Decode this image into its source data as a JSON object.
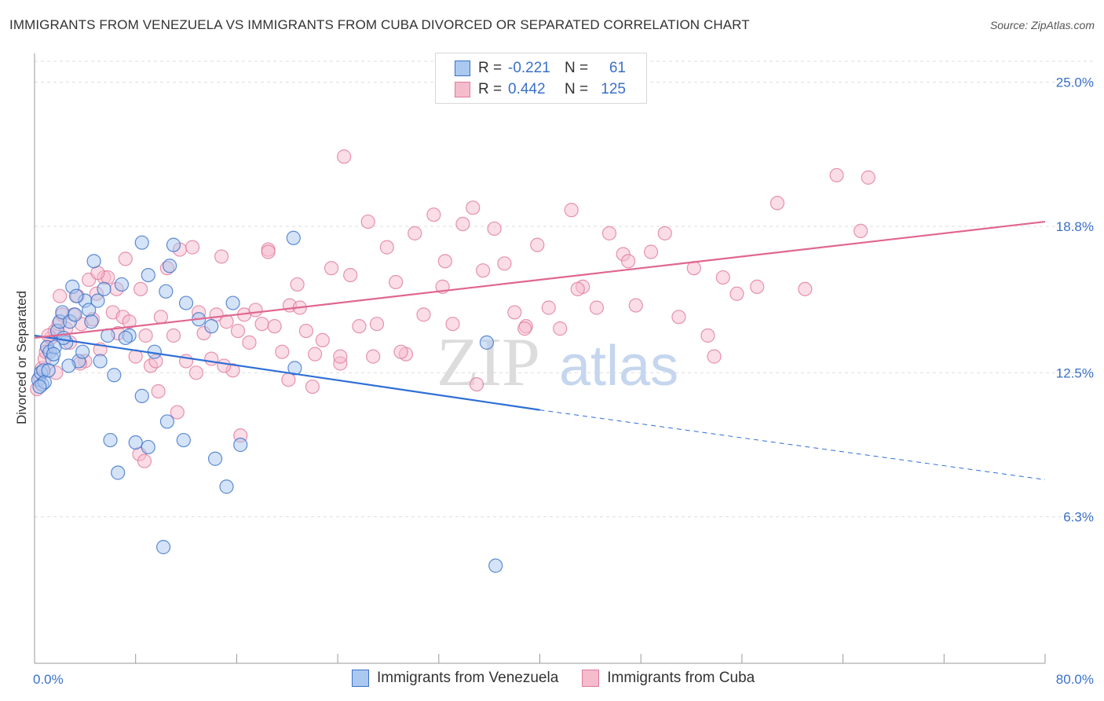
{
  "title": "IMMIGRANTS FROM VENEZUELA VS IMMIGRANTS FROM CUBA DIVORCED OR SEPARATED CORRELATION CHART",
  "source": "Source: ZipAtlas.com",
  "watermark": {
    "part1": "ZIP",
    "part2": "atlas"
  },
  "legend": {
    "rows": [
      {
        "r_label": "R =",
        "r_value": "-0.221",
        "n_label": "N =",
        "n_value": "61"
      },
      {
        "r_label": "R =",
        "r_value": "0.442",
        "n_label": "N =",
        "n_value": "125"
      }
    ]
  },
  "colors": {
    "venezuela_fill": "#aac8f0",
    "venezuela_stroke": "#3a70c8",
    "venezuela_line": "#2e6fd6",
    "cuba_fill": "#f5bccd",
    "cuba_stroke": "#e07a9c",
    "cuba_line": "#e06690",
    "tick_label": "#3a70c8",
    "grid": "#dddddd"
  },
  "chart_data": {
    "type": "scatter",
    "title": "IMMIGRANTS FROM VENEZUELA VS IMMIGRANTS FROM CUBA DIVORCED OR SEPARATED CORRELATION CHART",
    "xlabel": "",
    "ylabel": "Divorced or Separated",
    "xlim": [
      0,
      80
    ],
    "ylim": [
      0,
      25.9
    ],
    "x_tick_labels": [
      "0.0%",
      "80.0%"
    ],
    "y_ticks": [
      6.3,
      12.5,
      18.8,
      25.0
    ],
    "y_tick_labels": [
      "6.3%",
      "12.5%",
      "18.8%",
      "25.0%"
    ],
    "grid": true,
    "legend_position": "top-center",
    "series": [
      {
        "name": "Immigrants from Venezuela",
        "R": -0.221,
        "N": 61,
        "trend": {
          "x0": 0,
          "y0": 14.1,
          "x1": 40,
          "y1": 10.9,
          "dash_to_x": 80,
          "dash_to_y": 7.9
        },
        "points": [
          [
            0.3,
            12.2
          ],
          [
            0.5,
            12.5
          ],
          [
            0.6,
            12.0
          ],
          [
            0.7,
            12.6
          ],
          [
            0.8,
            12.1
          ],
          [
            1.0,
            13.6
          ],
          [
            1.2,
            13.4
          ],
          [
            1.4,
            13.1
          ],
          [
            1.6,
            13.6
          ],
          [
            1.8,
            14.3
          ],
          [
            2.0,
            14.7
          ],
          [
            2.2,
            15.1
          ],
          [
            2.5,
            13.8
          ],
          [
            2.8,
            14.7
          ],
          [
            3.0,
            16.2
          ],
          [
            3.2,
            15.0
          ],
          [
            3.5,
            13.0
          ],
          [
            3.8,
            13.4
          ],
          [
            4.0,
            15.6
          ],
          [
            4.3,
            15.2
          ],
          [
            4.7,
            17.3
          ],
          [
            5.0,
            15.6
          ],
          [
            5.5,
            16.1
          ],
          [
            5.8,
            14.1
          ],
          [
            6.3,
            12.4
          ],
          [
            6.9,
            16.3
          ],
          [
            7.5,
            14.1
          ],
          [
            8.5,
            18.1
          ],
          [
            9.0,
            16.7
          ],
          [
            9.5,
            13.4
          ],
          [
            10.4,
            16.0
          ],
          [
            10.7,
            17.1
          ],
          [
            13.0,
            14.8
          ],
          [
            15.7,
            15.5
          ],
          [
            20.6,
            12.7
          ],
          [
            35.8,
            13.8
          ],
          [
            1.5,
            13.3
          ],
          [
            2.7,
            12.8
          ],
          [
            6.0,
            9.6
          ],
          [
            6.6,
            8.2
          ],
          [
            8.0,
            9.5
          ],
          [
            8.5,
            11.5
          ],
          [
            9.0,
            9.3
          ],
          [
            10.5,
            10.4
          ],
          [
            11.0,
            18.0
          ],
          [
            11.8,
            9.6
          ],
          [
            14.3,
            8.8
          ],
          [
            15.2,
            7.6
          ],
          [
            16.3,
            9.4
          ],
          [
            20.5,
            18.3
          ],
          [
            10.2,
            5.0
          ],
          [
            36.5,
            4.2
          ],
          [
            4.5,
            14.7
          ],
          [
            3.3,
            15.8
          ],
          [
            2.3,
            14.0
          ],
          [
            1.1,
            12.6
          ],
          [
            0.4,
            11.9
          ],
          [
            5.2,
            13.0
          ],
          [
            7.2,
            14.0
          ],
          [
            12.0,
            15.5
          ],
          [
            14.0,
            14.5
          ]
        ]
      },
      {
        "name": "Immigrants from Cuba",
        "R": 0.442,
        "N": 125,
        "trend": {
          "x0": 0,
          "y0": 14.0,
          "x1": 80,
          "y1": 19.0
        },
        "points": [
          [
            0.2,
            11.8
          ],
          [
            0.4,
            12.3
          ],
          [
            0.6,
            12.7
          ],
          [
            0.8,
            13.1
          ],
          [
            1.0,
            13.6
          ],
          [
            1.3,
            14.0
          ],
          [
            1.6,
            14.3
          ],
          [
            1.9,
            14.6
          ],
          [
            2.2,
            15.0
          ],
          [
            2.5,
            14.4
          ],
          [
            2.8,
            13.8
          ],
          [
            3.1,
            15.0
          ],
          [
            3.4,
            15.8
          ],
          [
            3.7,
            14.6
          ],
          [
            4.0,
            13.0
          ],
          [
            4.3,
            16.5
          ],
          [
            4.6,
            14.8
          ],
          [
            4.9,
            15.9
          ],
          [
            5.2,
            13.5
          ],
          [
            5.5,
            16.6
          ],
          [
            5.8,
            16.6
          ],
          [
            6.2,
            15.1
          ],
          [
            6.6,
            14.2
          ],
          [
            7.0,
            14.9
          ],
          [
            7.5,
            14.7
          ],
          [
            8.0,
            13.2
          ],
          [
            8.4,
            16.1
          ],
          [
            8.8,
            14.1
          ],
          [
            9.2,
            12.8
          ],
          [
            9.6,
            13.0
          ],
          [
            10.0,
            14.9
          ],
          [
            10.5,
            17.0
          ],
          [
            11.0,
            14.1
          ],
          [
            11.5,
            17.8
          ],
          [
            12.0,
            13.0
          ],
          [
            12.5,
            17.9
          ],
          [
            13.0,
            15.1
          ],
          [
            13.4,
            14.2
          ],
          [
            14.0,
            13.1
          ],
          [
            14.4,
            15.0
          ],
          [
            14.8,
            17.5
          ],
          [
            15.2,
            14.7
          ],
          [
            15.7,
            12.6
          ],
          [
            16.1,
            14.3
          ],
          [
            16.6,
            15.0
          ],
          [
            17.0,
            13.8
          ],
          [
            17.5,
            15.2
          ],
          [
            18.0,
            14.6
          ],
          [
            18.5,
            17.8
          ],
          [
            19.0,
            14.5
          ],
          [
            19.6,
            13.4
          ],
          [
            20.2,
            15.4
          ],
          [
            20.8,
            16.3
          ],
          [
            21.5,
            14.3
          ],
          [
            22.2,
            13.3
          ],
          [
            22.8,
            13.9
          ],
          [
            23.5,
            17.0
          ],
          [
            24.2,
            12.9
          ],
          [
            25.0,
            16.7
          ],
          [
            25.7,
            14.5
          ],
          [
            26.4,
            19.0
          ],
          [
            27.1,
            14.6
          ],
          [
            27.9,
            17.9
          ],
          [
            28.6,
            16.4
          ],
          [
            29.4,
            13.3
          ],
          [
            30.1,
            18.5
          ],
          [
            30.8,
            15.0
          ],
          [
            31.6,
            19.3
          ],
          [
            32.3,
            16.2
          ],
          [
            33.1,
            14.6
          ],
          [
            33.9,
            18.9
          ],
          [
            34.7,
            19.6
          ],
          [
            35.5,
            16.9
          ],
          [
            36.4,
            18.7
          ],
          [
            37.2,
            17.2
          ],
          [
            38.0,
            15.1
          ],
          [
            38.9,
            14.5
          ],
          [
            39.8,
            18.0
          ],
          [
            40.7,
            15.3
          ],
          [
            41.6,
            14.4
          ],
          [
            42.5,
            19.5
          ],
          [
            43.4,
            16.2
          ],
          [
            44.5,
            15.3
          ],
          [
            45.5,
            18.5
          ],
          [
            46.6,
            17.6
          ],
          [
            47.6,
            15.4
          ],
          [
            48.8,
            17.7
          ],
          [
            49.9,
            18.5
          ],
          [
            51.0,
            14.9
          ],
          [
            52.2,
            17.0
          ],
          [
            53.3,
            14.1
          ],
          [
            54.5,
            16.6
          ],
          [
            55.6,
            15.9
          ],
          [
            57.2,
            16.2
          ],
          [
            58.8,
            19.8
          ],
          [
            61.0,
            16.1
          ],
          [
            63.5,
            21.0
          ],
          [
            66.0,
            20.9
          ],
          [
            65.4,
            18.6
          ],
          [
            5.0,
            16.8
          ],
          [
            6.5,
            16.1
          ],
          [
            7.2,
            17.4
          ],
          [
            8.3,
            9.0
          ],
          [
            8.7,
            8.7
          ],
          [
            9.8,
            11.7
          ],
          [
            11.3,
            10.8
          ],
          [
            16.3,
            9.8
          ],
          [
            12.8,
            12.5
          ],
          [
            15.0,
            12.8
          ],
          [
            20.1,
            12.2
          ],
          [
            22.0,
            11.9
          ],
          [
            24.2,
            13.2
          ],
          [
            26.8,
            13.2
          ],
          [
            29.0,
            13.4
          ],
          [
            35.0,
            12.0
          ],
          [
            38.8,
            14.4
          ],
          [
            43.0,
            16.1
          ],
          [
            47.0,
            17.3
          ],
          [
            53.8,
            13.2
          ],
          [
            18.5,
            17.7
          ],
          [
            21.0,
            15.3
          ],
          [
            24.5,
            21.8
          ],
          [
            32.5,
            17.3
          ],
          [
            1.1,
            14.1
          ],
          [
            2.0,
            15.8
          ],
          [
            3.6,
            12.9
          ],
          [
            0.9,
            13.4
          ],
          [
            1.7,
            12.5
          ]
        ]
      }
    ]
  },
  "bottom_legend": [
    "Immigrants from Venezuela",
    "Immigrants from Cuba"
  ]
}
